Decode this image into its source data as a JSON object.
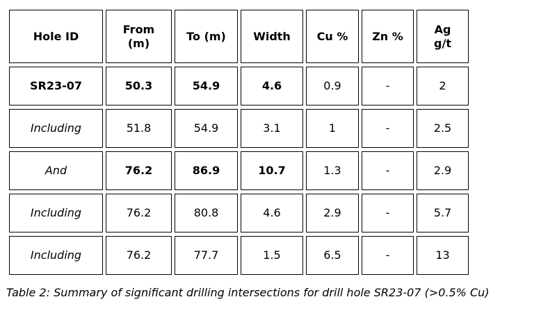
{
  "table": {
    "headers": [
      "Hole ID",
      "From\n(m)",
      "To (m)",
      "Width",
      "Cu %",
      "Zn %",
      "Ag\ng/t"
    ],
    "rows": [
      {
        "cells": [
          "SR23-07",
          "50.3",
          "54.9",
          "4.6",
          "0.9",
          "-",
          "2"
        ],
        "styles": [
          "bold",
          "bold",
          "bold",
          "bold",
          "normal",
          "normal",
          "normal"
        ]
      },
      {
        "cells": [
          "Including",
          "51.8",
          "54.9",
          "3.1",
          "1",
          "-",
          "2.5"
        ],
        "styles": [
          "italic",
          "normal",
          "normal",
          "normal",
          "normal",
          "normal",
          "normal"
        ]
      },
      {
        "cells": [
          "And",
          "76.2",
          "86.9",
          "10.7",
          "1.3",
          "-",
          "2.9"
        ],
        "styles": [
          "italic",
          "bold",
          "bold",
          "bold",
          "normal",
          "normal",
          "normal"
        ]
      },
      {
        "cells": [
          "Including",
          "76.2",
          "80.8",
          "4.6",
          "2.9",
          "-",
          "5.7"
        ],
        "styles": [
          "italic",
          "normal",
          "normal",
          "normal",
          "normal",
          "normal",
          "normal"
        ]
      },
      {
        "cells": [
          "Including",
          "76.2",
          "77.7",
          "1.5",
          "6.5",
          "-",
          "13"
        ],
        "styles": [
          "italic",
          "normal",
          "normal",
          "normal",
          "normal",
          "normal",
          "normal"
        ]
      }
    ]
  },
  "caption": "Table 2: Summary of significant drilling intersections for drill hole SR23-07 (>0.5% Cu)"
}
